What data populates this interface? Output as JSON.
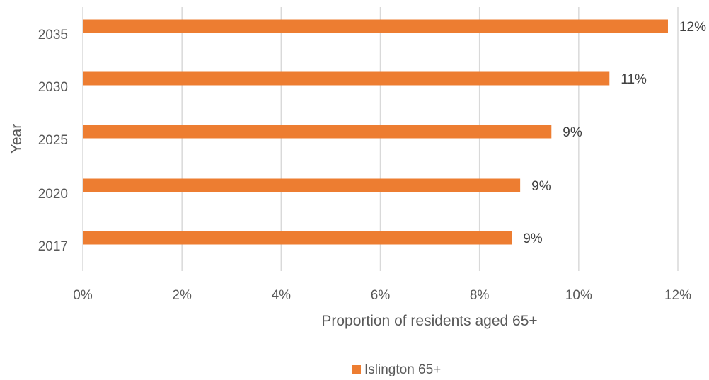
{
  "chart_data": {
    "type": "bar",
    "orientation": "horizontal",
    "categories": [
      "2017",
      "2020",
      "2025",
      "2030",
      "2035"
    ],
    "series": [
      {
        "name": "Islington 65+",
        "values": [
          8.65,
          8.82,
          9.45,
          10.62,
          11.8
        ],
        "labels": [
          "9%",
          "9%",
          "9%",
          "11%",
          "12%"
        ],
        "color": "#ED7D31"
      }
    ],
    "xlabel": "Proportion of residents aged 65+",
    "ylabel": "Year",
    "xlim": [
      0,
      12
    ],
    "x_ticks": [
      "0%",
      "2%",
      "4%",
      "6%",
      "8%",
      "10%",
      "12%"
    ],
    "grid": true,
    "legend_position": "bottom"
  }
}
